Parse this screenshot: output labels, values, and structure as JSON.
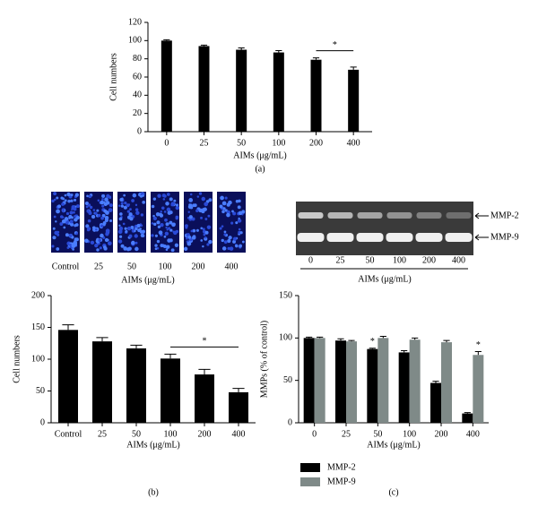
{
  "chart_data": [
    {
      "type": "bar",
      "caption": "(a)",
      "ylabel": "Cell numbers",
      "xlabel": "AIMs (μg/mL)",
      "categories": [
        "0",
        "25",
        "50",
        "100",
        "200",
        "400"
      ],
      "values": [
        100,
        94,
        90,
        87,
        79,
        68
      ],
      "errors": [
        1,
        1,
        2,
        2,
        2,
        3
      ],
      "color": "#000000",
      "ylim": [
        0,
        120
      ],
      "yticks": [
        0,
        20,
        40,
        60,
        80,
        100,
        120
      ],
      "significance": [
        {
          "label": "*",
          "span": [
            "200",
            "400"
          ]
        }
      ]
    },
    {
      "type": "bar",
      "caption": "(b)",
      "ylabel": "Cell numbers",
      "xlabel": "AIMs (μg/mL)",
      "categories": [
        "Control",
        "25",
        "50",
        "100",
        "200",
        "400"
      ],
      "values": [
        146,
        128,
        117,
        101,
        76,
        48
      ],
      "errors": [
        8,
        6,
        5,
        7,
        8,
        6
      ],
      "color": "#000000",
      "ylim": [
        0,
        200
      ],
      "yticks": [
        0,
        50,
        100,
        150,
        200
      ],
      "significance": [
        {
          "label": "*",
          "span": [
            "100",
            "400"
          ]
        }
      ]
    },
    {
      "type": "bar",
      "caption": "(c)",
      "ylabel": "MMPs (% of control)",
      "xlabel": "AIMs (μg/mL)",
      "categories": [
        "0",
        "25",
        "50",
        "100",
        "200",
        "400"
      ],
      "series": [
        {
          "name": "MMP-2",
          "color": "#000000",
          "values": [
            100,
            97,
            87,
            83,
            47,
            11
          ],
          "errors": [
            1,
            2,
            1,
            2,
            2,
            1
          ]
        },
        {
          "name": "MMP-9",
          "color": "#7f8a88",
          "values": [
            100,
            96,
            100,
            98,
            95,
            80
          ],
          "errors": [
            1,
            1,
            2,
            2,
            2,
            4
          ]
        }
      ],
      "ylim": [
        0,
        150
      ],
      "yticks": [
        0,
        50,
        100,
        150
      ],
      "significance": [
        {
          "label": "*",
          "series": "MMP-2",
          "category": "50"
        },
        {
          "label": "*",
          "series": "MMP-9",
          "category": "400"
        }
      ]
    }
  ],
  "image_panels": [
    {
      "labels": [
        "Control",
        "25",
        "50",
        "100",
        "200",
        "400"
      ],
      "xlabel": "AIMs (μg/mL)"
    },
    {
      "lanes": [
        "0",
        "25",
        "50",
        "100",
        "200",
        "400"
      ],
      "bands": [
        "MMP-2",
        "MMP-9"
      ],
      "xlabel": "AIMs (μg/mL)"
    }
  ]
}
